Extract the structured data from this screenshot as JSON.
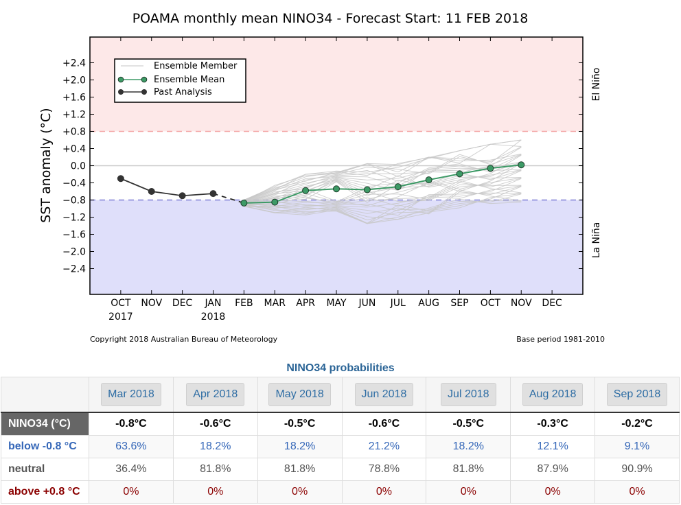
{
  "chart_data": {
    "type": "line",
    "title": "POAMA monthly mean NINO34 - Forecast Start: 11 FEB 2018",
    "xlabel": "",
    "ylabel": "SST anomaly (°C)",
    "ylim": [
      -3.0,
      3.0
    ],
    "yticks": [
      {
        "v": 2.4,
        "label": "+2.4"
      },
      {
        "v": 2.0,
        "label": "+2.0"
      },
      {
        "v": 1.6,
        "label": "+1.6"
      },
      {
        "v": 1.2,
        "label": "+1.2"
      },
      {
        "v": 0.8,
        "label": "+0.8"
      },
      {
        "v": 0.4,
        "label": "+0.4"
      },
      {
        "v": 0.0,
        "label": "0.0"
      },
      {
        "v": -0.4,
        "label": "−0.4"
      },
      {
        "v": -0.8,
        "label": "−0.8"
      },
      {
        "v": -1.2,
        "label": "−1.2"
      },
      {
        "v": -1.6,
        "label": "−1.6"
      },
      {
        "v": -2.0,
        "label": "−2.0"
      },
      {
        "v": -2.4,
        "label": "−2.4"
      }
    ],
    "xlim": [
      0,
      16
    ],
    "xticks": [
      {
        "i": 1,
        "label": "OCT",
        "sub": "2017"
      },
      {
        "i": 2,
        "label": "NOV"
      },
      {
        "i": 3,
        "label": "DEC"
      },
      {
        "i": 4,
        "label": "JAN",
        "sub": "2018"
      },
      {
        "i": 5,
        "label": "FEB"
      },
      {
        "i": 6,
        "label": "MAR"
      },
      {
        "i": 7,
        "label": "APR"
      },
      {
        "i": 8,
        "label": "MAY"
      },
      {
        "i": 9,
        "label": "JUN"
      },
      {
        "i": 10,
        "label": "JUL"
      },
      {
        "i": 11,
        "label": "AUG"
      },
      {
        "i": 12,
        "label": "SEP"
      },
      {
        "i": 13,
        "label": "OCT"
      },
      {
        "i": 14,
        "label": "NOV"
      },
      {
        "i": 15,
        "label": "DEC"
      }
    ],
    "thresholds": {
      "el_nino": 0.8,
      "la_nina": -0.8
    },
    "regions": {
      "el_nino_label": "El Niño",
      "la_nina_label": "La Niña"
    },
    "colors": {
      "el_nino_fill": "#fde8e8",
      "la_nina_fill": "#dfdffa",
      "el_nino_line": "#f4a6a6",
      "la_nina_line": "#7f7fd6",
      "ensemble_mean": "#3d9a66",
      "ensemble_mean_marker": "#3d9a66",
      "past_analysis": "#333333",
      "ensemble_member": "#c8c8c8",
      "zero_line": "#cccccc"
    },
    "legend": {
      "position": "top-left",
      "entries": [
        "Ensemble Member",
        "Ensemble Mean",
        "Past Analysis"
      ]
    },
    "series": [
      {
        "name": "Past Analysis",
        "x": [
          1,
          2,
          3,
          4
        ],
        "values": [
          -0.3,
          -0.6,
          -0.7,
          -0.65
        ]
      },
      {
        "name": "Ensemble Mean",
        "x": [
          5,
          6,
          7,
          8,
          9,
          10,
          11,
          12,
          13,
          14
        ],
        "values": [
          -0.87,
          -0.85,
          -0.58,
          -0.54,
          -0.56,
          -0.49,
          -0.33,
          -0.19,
          -0.06,
          0.02
        ]
      }
    ],
    "ensemble_envelope": {
      "x": [
        5,
        6,
        7,
        8,
        9,
        10,
        11,
        12,
        13,
        14
      ],
      "min": [
        -0.95,
        -1.1,
        -1.15,
        -1.2,
        -1.35,
        -1.25,
        -1.15,
        -1.0,
        -0.9,
        -0.85
      ],
      "max": [
        -0.8,
        -0.45,
        -0.2,
        0.05,
        0.05,
        0.05,
        0.2,
        0.35,
        0.5,
        0.6
      ]
    },
    "annotations": {
      "copyright": "Copyright 2018 Australian Bureau of Meteorology",
      "base_period": "Base period 1981-2010"
    }
  },
  "probabilities": {
    "title": "NINO34 probabilities",
    "months": [
      "Mar 2018",
      "Apr 2018",
      "May 2018",
      "Jun 2018",
      "Jul 2018",
      "Aug 2018",
      "Sep 2018"
    ],
    "rows": [
      {
        "label": "NINO34 (°C)",
        "values": [
          "-0.8°C",
          "-0.6°C",
          "-0.5°C",
          "-0.6°C",
          "-0.5°C",
          "-0.3°C",
          "-0.2°C"
        ]
      },
      {
        "label": "below -0.8 °C",
        "values": [
          "63.6%",
          "18.2%",
          "18.2%",
          "21.2%",
          "18.2%",
          "12.1%",
          "9.1%"
        ]
      },
      {
        "label": "neutral",
        "values": [
          "36.4%",
          "81.8%",
          "81.8%",
          "78.8%",
          "81.8%",
          "87.9%",
          "90.9%"
        ]
      },
      {
        "label": "above +0.8 °C",
        "values": [
          "0%",
          "0%",
          "0%",
          "0%",
          "0%",
          "0%",
          "0%"
        ]
      }
    ]
  }
}
